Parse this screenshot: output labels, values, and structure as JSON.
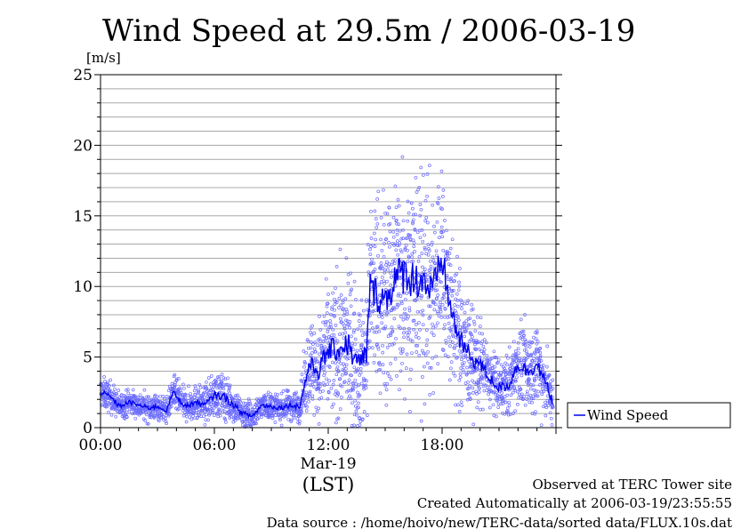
{
  "chart_data": {
    "type": "scatter",
    "title": "Wind Speed at 29.5m / 2006-03-19",
    "ylabel": "[m/s]",
    "ylim": [
      0,
      25
    ],
    "yticks": [
      "0",
      "5",
      "10",
      "15",
      "20",
      "25"
    ],
    "xlim_hours": [
      0,
      24
    ],
    "xticks": [
      {
        "hour": 0,
        "label": "00:00"
      },
      {
        "hour": 6,
        "label": "06:00"
      },
      {
        "hour": 12,
        "label": "12:00"
      },
      {
        "hour": 18,
        "label": "18:00"
      }
    ],
    "date_label": "Mar-19",
    "time_zone_label": "(LST)",
    "grid": true,
    "legend": {
      "position": "right",
      "label": "Wind Speed"
    },
    "series_color": "#0000ee",
    "point_color": "#6a6aff",
    "series": [
      {
        "name": "Wind Speed",
        "x_hours": [
          0,
          0.5,
          1,
          1.5,
          2,
          2.5,
          3,
          3.5,
          3.8,
          4,
          4.5,
          5,
          5.5,
          6,
          6.5,
          7,
          7.5,
          8,
          8.5,
          9,
          9.5,
          10,
          10.5,
          11,
          11.5,
          12,
          12.5,
          13,
          13.5,
          14,
          14.2,
          14.5,
          15,
          15.5,
          16,
          16.5,
          17,
          17.5,
          18,
          18.5,
          19,
          19.5,
          20,
          20.5,
          21,
          21.5,
          22,
          22.5,
          23,
          23.5,
          24
        ],
        "mean": [
          2.5,
          2.2,
          1.5,
          1.8,
          1.6,
          1.4,
          1.5,
          1.2,
          2.5,
          2.2,
          1.5,
          1.8,
          1.6,
          2.3,
          2.2,
          1.6,
          1.0,
          0.8,
          1.6,
          1.5,
          1.4,
          1.6,
          1.5,
          4.5,
          4.0,
          5.5,
          5.5,
          6.0,
          4.5,
          5.0,
          10.0,
          9.5,
          9.0,
          10.5,
          11.0,
          10.5,
          10.5,
          9.5,
          12.0,
          8.0,
          6.0,
          5.0,
          4.5,
          3.5,
          2.8,
          3.0,
          4.5,
          4.0,
          4.5,
          3.0,
          1.2
        ],
        "spread": [
          0.7,
          0.7,
          0.6,
          0.6,
          0.6,
          0.6,
          0.6,
          0.6,
          0.8,
          0.8,
          0.7,
          0.8,
          0.8,
          1.0,
          1.0,
          0.8,
          0.7,
          0.6,
          0.6,
          0.6,
          0.6,
          0.7,
          0.7,
          2.0,
          2.5,
          3.0,
          3.0,
          3.5,
          3.0,
          3.5,
          4.0,
          4.5,
          5.0,
          5.0,
          5.5,
          5.0,
          5.0,
          5.0,
          4.5,
          3.5,
          3.0,
          2.5,
          2.0,
          1.5,
          1.2,
          1.5,
          1.8,
          2.0,
          2.0,
          1.5,
          0.8
        ]
      }
    ]
  },
  "footer": {
    "observed": "Observed at TERC Tower site",
    "created": "Created Automatically at 2006-03-19/23:55:55",
    "source": "Data source : /home/hoivo/new/TERC-data/sorted  data/FLUX.10s.dat"
  }
}
